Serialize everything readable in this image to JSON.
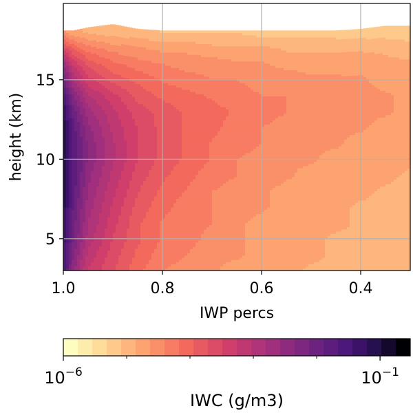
{
  "chart_data": {
    "type": "heatmap",
    "plot_style": "filled contour",
    "xlabel": "IWP percs",
    "ylabel": "height (km)",
    "x_range": [
      1.0,
      0.3
    ],
    "x_reversed": true,
    "y_range": [
      3.0,
      19.8
    ],
    "x_ticks": [
      1.0,
      0.8,
      0.6,
      0.4
    ],
    "x_tick_labels": [
      "1.0",
      "0.8",
      "0.6",
      "0.4"
    ],
    "y_ticks": [
      5,
      10,
      15
    ],
    "y_tick_labels": [
      "5",
      "10",
      "15"
    ],
    "grid": true,
    "colormap": "magma_r",
    "x": [
      1.0,
      0.98,
      0.95,
      0.9,
      0.85,
      0.8,
      0.75,
      0.7,
      0.65,
      0.6,
      0.55,
      0.5,
      0.45,
      0.4,
      0.35,
      0.3
    ],
    "y": [
      3,
      4,
      5,
      6,
      7,
      8,
      9,
      10,
      11,
      12,
      13,
      14,
      15,
      16,
      17,
      18
    ],
    "log10_iwc_grid": [
      [
        -1.5,
        -2.5,
        -3.3,
        -3.7,
        -4.1,
        -4.4,
        -4.5,
        -4.6,
        -4.7,
        -4.8,
        -4.8,
        -4.9,
        -4.9,
        -4.9,
        -5.0,
        -5.0
      ],
      [
        -1.4,
        -2.3,
        -3.1,
        -3.6,
        -4.0,
        -4.3,
        -4.4,
        -4.6,
        -4.6,
        -4.7,
        -4.8,
        -4.8,
        -4.9,
        -4.9,
        -5.0,
        -5.0
      ],
      [
        -1.3,
        -2.1,
        -2.9,
        -3.5,
        -3.9,
        -4.2,
        -4.3,
        -4.5,
        -4.6,
        -4.7,
        -4.7,
        -4.8,
        -4.9,
        -4.9,
        -4.9,
        -5.0
      ],
      [
        -1.2,
        -2.0,
        -2.8,
        -3.4,
        -3.9,
        -4.2,
        -4.3,
        -4.4,
        -4.6,
        -4.7,
        -4.7,
        -4.8,
        -4.8,
        -4.9,
        -4.9,
        -5.0
      ],
      [
        -1.1,
        -1.9,
        -2.7,
        -3.3,
        -3.8,
        -4.1,
        -4.3,
        -4.4,
        -4.5,
        -4.6,
        -4.7,
        -4.8,
        -4.8,
        -4.9,
        -4.9,
        -4.9
      ],
      [
        -1.0,
        -1.8,
        -2.6,
        -3.2,
        -3.7,
        -4.0,
        -4.2,
        -4.4,
        -4.5,
        -4.6,
        -4.7,
        -4.7,
        -4.8,
        -4.8,
        -4.9,
        -4.9
      ],
      [
        -0.9,
        -1.7,
        -2.5,
        -3.1,
        -3.6,
        -3.9,
        -4.1,
        -4.3,
        -4.4,
        -4.5,
        -4.6,
        -4.7,
        -4.7,
        -4.8,
        -4.8,
        -4.9
      ],
      [
        -0.9,
        -1.7,
        -2.4,
        -3.0,
        -3.5,
        -3.8,
        -4.0,
        -4.2,
        -4.4,
        -4.5,
        -4.6,
        -4.6,
        -4.7,
        -4.7,
        -4.8,
        -4.8
      ],
      [
        -0.9,
        -1.7,
        -2.4,
        -3.0,
        -3.5,
        -3.8,
        -4.0,
        -4.2,
        -4.3,
        -4.4,
        -4.5,
        -4.6,
        -4.6,
        -4.7,
        -4.7,
        -4.8
      ],
      [
        -1.0,
        -1.8,
        -2.5,
        -3.1,
        -3.5,
        -3.8,
        -4.0,
        -4.1,
        -4.3,
        -4.4,
        -4.5,
        -4.5,
        -4.6,
        -4.6,
        -4.7,
        -4.7
      ],
      [
        -1.2,
        -2.0,
        -2.7,
        -3.2,
        -3.6,
        -3.8,
        -4.0,
        -4.1,
        -4.2,
        -4.3,
        -4.4,
        -4.5,
        -4.5,
        -4.6,
        -4.6,
        -4.7
      ],
      [
        -1.5,
        -2.3,
        -3.0,
        -3.4,
        -3.8,
        -4.0,
        -4.1,
        -4.2,
        -4.3,
        -4.4,
        -4.4,
        -4.5,
        -4.5,
        -4.6,
        -4.6,
        -4.7
      ],
      [
        -2.0,
        -2.8,
        -3.4,
        -3.8,
        -4.0,
        -4.2,
        -4.3,
        -4.4,
        -4.4,
        -4.5,
        -4.5,
        -4.6,
        -4.6,
        -4.6,
        -4.7,
        -4.7
      ],
      [
        -2.6,
        -3.3,
        -3.8,
        -4.1,
        -4.3,
        -4.4,
        -4.5,
        -4.5,
        -4.6,
        -4.6,
        -4.7,
        -4.7,
        -4.7,
        -4.7,
        -4.8,
        -4.8
      ],
      [
        -3.6,
        -4.0,
        -4.3,
        -4.5,
        -4.6,
        -4.7,
        -4.7,
        -4.8,
        -4.8,
        -4.8,
        -4.9,
        -4.9,
        -4.9,
        -4.9,
        -4.9,
        -5.0
      ],
      [
        -4.6,
        -4.8,
        -4.9,
        -5.0,
        -5.0,
        -5.1,
        -5.1,
        -5.1,
        -5.1,
        -5.2,
        -5.2,
        -5.2,
        -5.2,
        -5.2,
        -5.2,
        -5.2
      ]
    ],
    "top_boundary_km": [
      18.1,
      18.1,
      18.3,
      18.5,
      18.2,
      18.1,
      18.1,
      18.1,
      18.1,
      18.1,
      18.1,
      18.1,
      18.1,
      18.2,
      18.4,
      18.4
    ],
    "colorbar": {
      "label": "IWC (g/m3)",
      "scale": "log",
      "min": 1e-06,
      "max": 0.3,
      "ticks": [
        {
          "value": 1e-06,
          "base": "10",
          "exp": "−6"
        },
        {
          "value": 0.1,
          "base": "10",
          "exp": "−1"
        }
      ],
      "levels": 24,
      "orientation": "horizontal"
    }
  }
}
